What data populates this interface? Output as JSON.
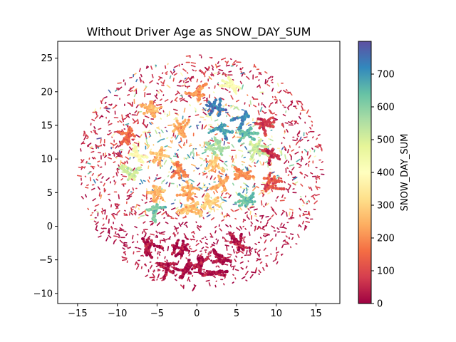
{
  "chart_data": {
    "type": "scatter",
    "title": "Without Driver Age as SNOW_DAY_SUM",
    "xlabel": "",
    "ylabel": "",
    "xlim": [
      -17.5,
      18.0
    ],
    "ylim": [
      -11.5,
      27.5
    ],
    "xticks": [
      -15,
      -10,
      -5,
      0,
      5,
      10,
      15
    ],
    "yticks": [
      -10,
      -5,
      0,
      5,
      10,
      15,
      20,
      25
    ],
    "grid": false,
    "colorbar": {
      "label": "SNOW_DAY_SUM",
      "colormap": "Spectral",
      "vmin": 0,
      "vmax": 800,
      "ticks": [
        0,
        100,
        200,
        300,
        400,
        500,
        600,
        700
      ]
    },
    "colormap_stops": [
      "#9e0142",
      "#d53e4f",
      "#f46d43",
      "#fdae61",
      "#fee08b",
      "#ffffbf",
      "#e6f598",
      "#abdda4",
      "#66c2a5",
      "#3288bd",
      "#5e4fa2"
    ],
    "dense_clusters": [
      {
        "x": 3.0,
        "y": 14.0,
        "value": 690
      },
      {
        "x": 6.5,
        "y": 13.5,
        "value": 650
      },
      {
        "x": 5.5,
        "y": 16.0,
        "value": 720
      },
      {
        "x": 2.0,
        "y": 17.5,
        "value": 740
      },
      {
        "x": -2.0,
        "y": 14.5,
        "value": 230
      },
      {
        "x": -5.5,
        "y": 17.5,
        "value": 260
      },
      {
        "x": -4.5,
        "y": 10.5,
        "value": 270
      },
      {
        "x": -2.5,
        "y": 8.5,
        "value": 180
      },
      {
        "x": 2.5,
        "y": 9.0,
        "value": 290
      },
      {
        "x": 2.5,
        "y": 12.0,
        "value": 560
      },
      {
        "x": 3.0,
        "y": 6.5,
        "value": 240
      },
      {
        "x": 5.5,
        "y": 8.0,
        "value": 200
      },
      {
        "x": 6.5,
        "y": 4.0,
        "value": 640
      },
      {
        "x": -1.0,
        "y": 5.0,
        "value": 230
      },
      {
        "x": -5.0,
        "y": 5.0,
        "value": 250
      },
      {
        "x": -8.5,
        "y": 8.0,
        "value": 520
      },
      {
        "x": -9.0,
        "y": 13.5,
        "value": 150
      },
      {
        "x": -1.0,
        "y": 2.5,
        "value": 270
      },
      {
        "x": 1.5,
        "y": 3.5,
        "value": 300
      },
      {
        "x": -5.0,
        "y": 2.0,
        "value": 620
      },
      {
        "x": 9.0,
        "y": 10.5,
        "value": 60
      },
      {
        "x": 9.5,
        "y": 6.5,
        "value": 120
      },
      {
        "x": 8.5,
        "y": 15.0,
        "value": 80
      },
      {
        "x": -4.0,
        "y": -6.0,
        "value": 20
      },
      {
        "x": -2.0,
        "y": -3.5,
        "value": 15
      },
      {
        "x": 0.5,
        "y": -5.5,
        "value": 20
      },
      {
        "x": 3.0,
        "y": -4.5,
        "value": 15
      },
      {
        "x": 5.0,
        "y": -2.5,
        "value": 25
      },
      {
        "x": -6.0,
        "y": -3.0,
        "value": 20
      },
      {
        "x": 2.5,
        "y": -7.0,
        "value": 15
      },
      {
        "x": -1.5,
        "y": -6.5,
        "value": 10
      },
      {
        "x": 0.0,
        "y": 20.0,
        "value": 210
      },
      {
        "x": 4.5,
        "y": 21.0,
        "value": 420
      },
      {
        "x": -7.5,
        "y": 10.5,
        "value": 400
      },
      {
        "x": 7.5,
        "y": 11.5,
        "value": 520
      }
    ]
  }
}
